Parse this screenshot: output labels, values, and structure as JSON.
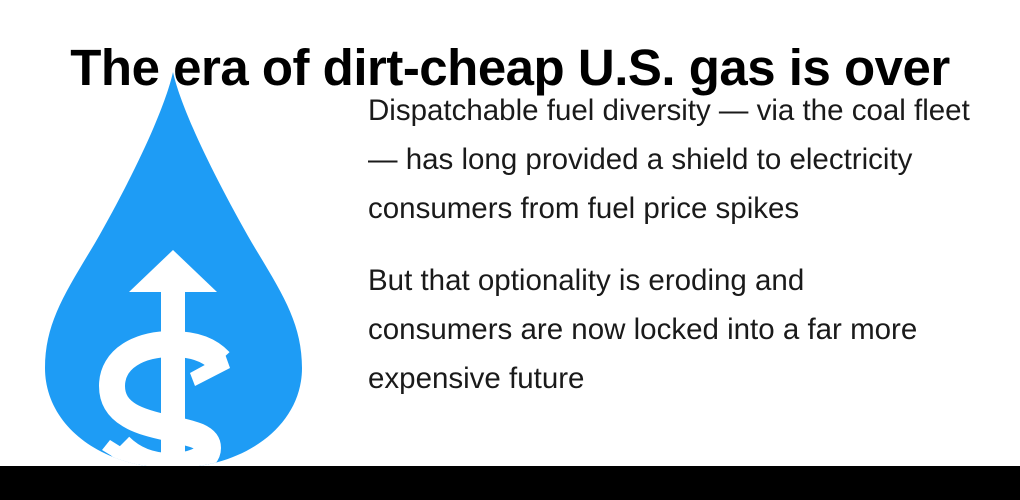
{
  "title": "The era of dirt-cheap U.S. gas is over",
  "paragraphs": [
    "Dispatchable fuel diversity — via the coal fleet — has long provided a shield to electricity consumers from fuel price spikes",
    "But that optionality is eroding and consumers are now locked into a far more expensive future"
  ],
  "graphic": {
    "icon": "gas-drop-price-rise-icon",
    "drop_color": "#1e9cf5",
    "symbol_color": "#ffffff"
  },
  "colors": {
    "title": "#000000",
    "text": "#1a1a1a",
    "footer_bar": "#000000"
  }
}
